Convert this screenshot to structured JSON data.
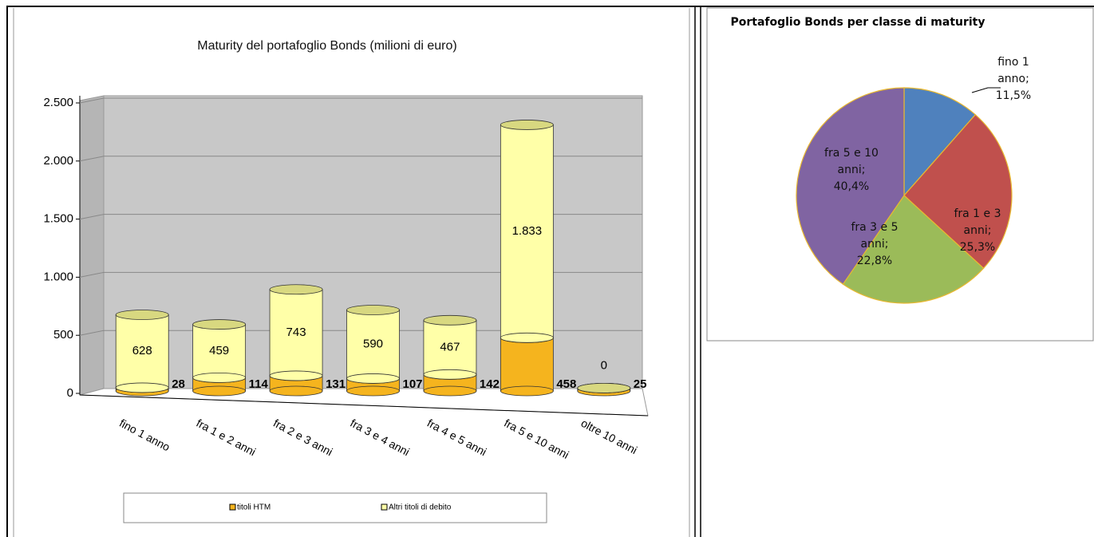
{
  "chart_data": [
    {
      "type": "bar",
      "title": "Maturity  del portafoglio Bonds (milioni di euro)",
      "categories": [
        "fino 1 anno",
        "fra 1 e 2 anni",
        "fra 2 e 3 anni",
        "fra 3 e 4 anni",
        "fra 4 e 5 anni",
        "fra 5 e 10 anni",
        "oltre 10 anni"
      ],
      "series": [
        {
          "name": "titoli HTM",
          "color": "#f5b41e",
          "values": [
            28,
            114,
            131,
            107,
            142,
            458,
            25
          ]
        },
        {
          "name": "Altri titoli di debito",
          "color": "#ffffa8",
          "values": [
            628,
            459,
            743,
            590,
            467,
            1833,
            0
          ],
          "value_labels": [
            "628",
            "459",
            "743",
            "590",
            "467",
            "1.833",
            "0"
          ]
        }
      ],
      "stacked": true,
      "ylim": [
        0,
        2500
      ],
      "yticks": [
        0,
        500,
        {
          "value": 1000,
          "label": "1.000"
        },
        {
          "value": 1500,
          "label": "1.500"
        },
        {
          "value": 2000,
          "label": "2.000"
        },
        {
          "value": 2500,
          "label": "2.500"
        }
      ],
      "grid": true
    },
    {
      "type": "pie",
      "title": "Portafoglio Bonds per classe di maturity",
      "categories": [
        "fino 1 anno",
        "fra 1 e 3 anni",
        "fra 3 e 5 anni",
        "fra 5 e 10 anni"
      ],
      "values": [
        11.5,
        25.3,
        22.8,
        40.4
      ],
      "value_labels": [
        "11,5%",
        "25,3%",
        "22,8%",
        "40,4%"
      ],
      "label_separator": ";",
      "colors": [
        "#4f81bd",
        "#c0504d",
        "#9bbb59",
        "#8064a2"
      ]
    }
  ]
}
